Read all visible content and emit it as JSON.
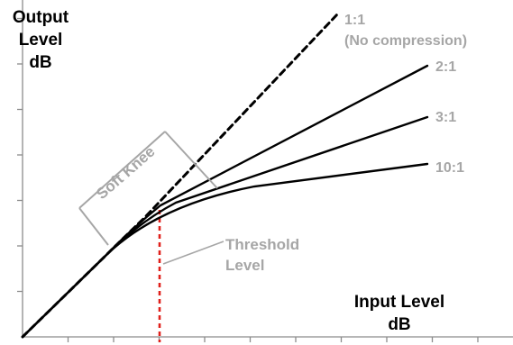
{
  "axes": {
    "y_label_lines": [
      "Output",
      "Level",
      "dB"
    ],
    "x_label_lines": [
      "Input Level",
      "dB"
    ]
  },
  "curves": [
    {
      "ratio_label": "1:1",
      "sub_label": "(No compression)",
      "style": "dashed"
    },
    {
      "ratio_label": "2:1",
      "style": "solid"
    },
    {
      "ratio_label": "3:1",
      "style": "solid"
    },
    {
      "ratio_label": "10:1",
      "style": "solid"
    }
  ],
  "annotations": {
    "soft_knee": "Soft Knee",
    "threshold_lines": [
      "Threshold",
      "Level"
    ]
  },
  "colors": {
    "curve": "#000000",
    "annotation_gray": "#a6a6a6",
    "threshold_marker": "#e0201b",
    "axis": "#8c8c8c"
  }
}
